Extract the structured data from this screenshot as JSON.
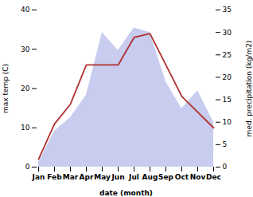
{
  "chart_data": {
    "type": "line",
    "xlabel": "date (month)",
    "ylabel": "max temp (C)",
    "y2label": "med. precipitation (kg/m2)",
    "categories": [
      "Jan",
      "Feb",
      "Mar",
      "Apr",
      "May",
      "Jun",
      "Jul",
      "Aug",
      "Sep",
      "Oct",
      "Nov",
      "Dec"
    ],
    "series": [
      {
        "type": "area",
        "axis": "y2",
        "color": "#c8ccee",
        "values": [
          1,
          8,
          11,
          16,
          30,
          26,
          31,
          30,
          19,
          13,
          17,
          10
        ]
      },
      {
        "type": "line",
        "color": "#b03030",
        "values": [
          2,
          11,
          16,
          26,
          26,
          26,
          33,
          34,
          26,
          18,
          14,
          10
        ]
      }
    ],
    "ylim": [
      0,
      40
    ],
    "yticks": [
      0,
      10,
      20,
      30,
      40
    ],
    "y2lim": [
      0,
      35
    ],
    "y2ticks": [
      0,
      5,
      10,
      15,
      20,
      25,
      30,
      35
    ]
  }
}
